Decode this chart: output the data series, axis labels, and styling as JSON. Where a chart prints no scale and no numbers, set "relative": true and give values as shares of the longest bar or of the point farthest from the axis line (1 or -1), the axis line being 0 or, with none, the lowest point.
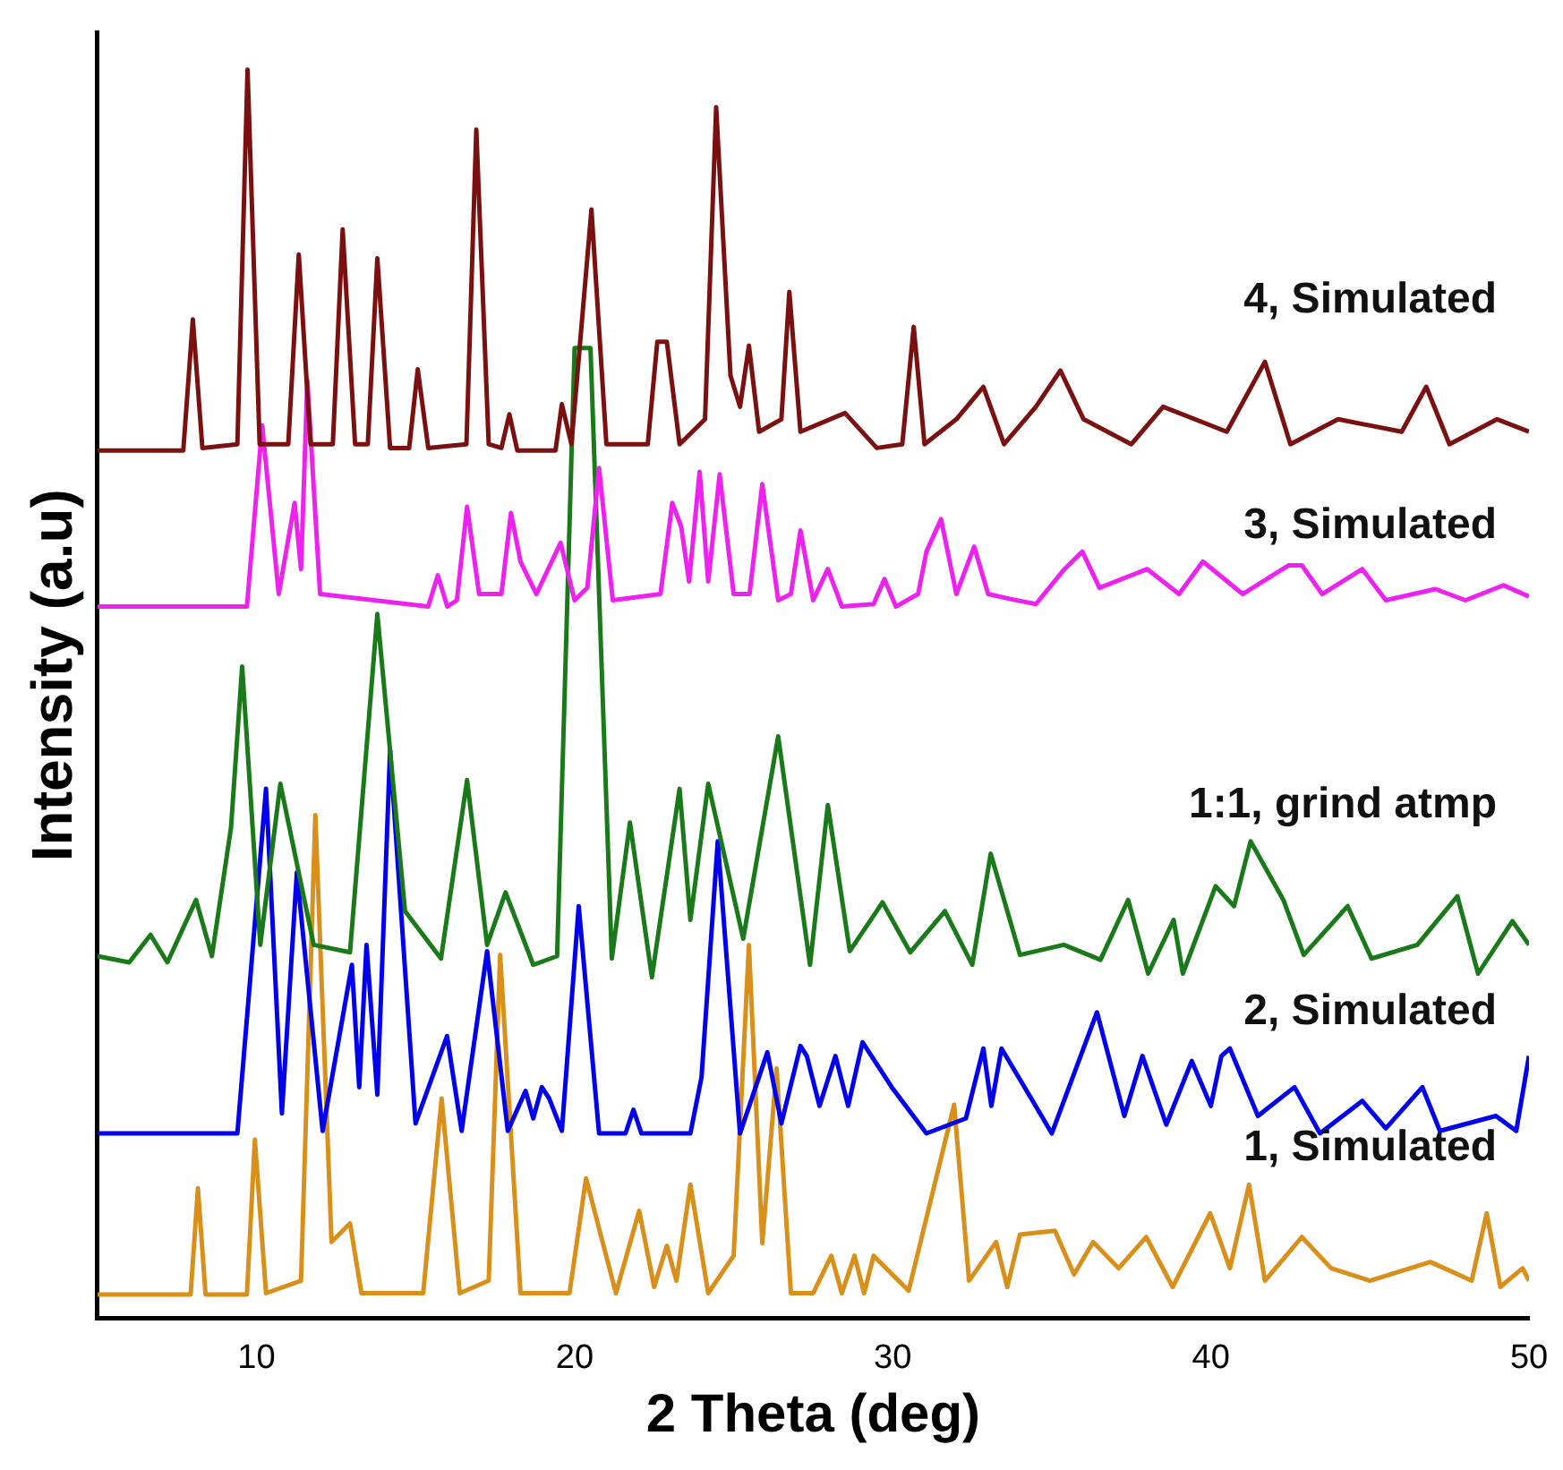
{
  "chart_data": {
    "type": "line",
    "xlabel": "2 Theta (deg)",
    "ylabel": "Intensity (a.u)",
    "xlim": [
      5,
      50
    ],
    "xticks": [
      10,
      20,
      30,
      40,
      50
    ],
    "relative": true,
    "tick_labels": "x",
    "grid": false,
    "legend": false,
    "marker": "none",
    "line_style": "solid",
    "series": [
      {
        "name": "4, Simulated",
        "color": "#7b1010",
        "x": [
          5,
          7.7,
          8.0,
          8.3,
          9.4,
          9.72,
          10.1,
          11.0,
          11.33,
          11.7,
          12.4,
          12.71,
          13.1,
          13.5,
          13.8,
          14.2,
          14.8,
          15.07,
          15.4,
          16.6,
          16.91,
          17.3,
          17.7,
          17.95,
          18.2,
          19.4,
          19.6,
          19.9,
          20.53,
          21.0,
          22.3,
          22.6,
          22.9,
          23.3,
          24.1,
          24.45,
          24.9,
          25.2,
          25.48,
          25.8,
          26.5,
          26.75,
          27.1,
          28.5,
          29.5,
          30.3,
          30.66,
          31.0,
          32.0,
          32.85,
          33.5,
          34.5,
          35.27,
          36.0,
          37.5,
          38.5,
          40.5,
          41.7,
          42.5,
          44.0,
          46.0,
          46.77,
          47.5,
          49.0,
          50
        ],
        "values": [
          0.695,
          0.695,
          0.8,
          0.697,
          0.7,
          1.0,
          0.7,
          0.7,
          0.852,
          0.7,
          0.7,
          0.872,
          0.7,
          0.7,
          0.849,
          0.697,
          0.697,
          0.76,
          0.697,
          0.7,
          0.952,
          0.7,
          0.697,
          0.724,
          0.695,
          0.695,
          0.732,
          0.7,
          0.888,
          0.7,
          0.7,
          0.782,
          0.782,
          0.7,
          0.72,
          0.97,
          0.755,
          0.73,
          0.779,
          0.71,
          0.72,
          0.822,
          0.71,
          0.725,
          0.697,
          0.7,
          0.794,
          0.7,
          0.72,
          0.746,
          0.7,
          0.73,
          0.759,
          0.72,
          0.7,
          0.73,
          0.71,
          0.766,
          0.7,
          0.72,
          0.71,
          0.746,
          0.7,
          0.72,
          0.71
        ]
      },
      {
        "name": "3, Simulated",
        "color": "#ee22ee",
        "x": [
          5,
          9.7,
          10.18,
          10.7,
          11.2,
          11.4,
          11.6,
          12.0,
          15.4,
          15.7,
          16.0,
          16.3,
          16.62,
          17.0,
          17.7,
          18.0,
          18.3,
          18.8,
          19.56,
          20.0,
          20.4,
          20.77,
          21.2,
          22.7,
          23.07,
          23.35,
          23.6,
          23.93,
          24.2,
          24.56,
          25.0,
          25.5,
          25.9,
          26.4,
          26.8,
          27.1,
          27.5,
          27.96,
          28.4,
          29.4,
          29.74,
          30.1,
          30.8,
          31.06,
          31.52,
          32.0,
          32.56,
          33.0,
          33.7,
          34.5,
          35.4,
          35.96,
          36.5,
          38.0,
          39.0,
          39.75,
          41.0,
          42.45,
          42.86,
          43.5,
          44.76,
          45.5,
          47.06,
          48.0,
          49.2,
          50
        ],
        "values": [
          0.57,
          0.57,
          0.715,
          0.58,
          0.653,
          0.6,
          0.751,
          0.58,
          0.57,
          0.595,
          0.57,
          0.575,
          0.65,
          0.58,
          0.58,
          0.645,
          0.606,
          0.58,
          0.621,
          0.575,
          0.585,
          0.681,
          0.575,
          0.58,
          0.653,
          0.634,
          0.59,
          0.678,
          0.59,
          0.676,
          0.58,
          0.58,
          0.668,
          0.575,
          0.58,
          0.631,
          0.575,
          0.6,
          0.57,
          0.572,
          0.592,
          0.57,
          0.58,
          0.614,
          0.64,
          0.58,
          0.618,
          0.58,
          0.576,
          0.572,
          0.6,
          0.614,
          0.585,
          0.6,
          0.58,
          0.606,
          0.58,
          0.603,
          0.603,
          0.58,
          0.6,
          0.575,
          0.584,
          0.575,
          0.587,
          0.578
        ]
      },
      {
        "name": "1:1, grind atmp",
        "color": "#1a7a1a",
        "x": [
          5,
          6.0,
          6.67,
          7.2,
          8.1,
          8.6,
          9.2,
          9.55,
          10.12,
          10.75,
          11.8,
          12.94,
          13.8,
          14.67,
          15.8,
          16.62,
          17.25,
          17.83,
          18.7,
          19.45,
          20.0,
          20.5,
          21.17,
          21.74,
          22.43,
          23.3,
          23.64,
          24.2,
          25.3,
          26.4,
          27.4,
          27.96,
          28.65,
          29.68,
          30.55,
          31.64,
          32.5,
          33.08,
          34.0,
          35.38,
          36.53,
          37.4,
          38.03,
          38.83,
          39.12,
          40.15,
          40.73,
          41.25,
          42.28,
          42.92,
          44.3,
          45.05,
          46.49,
          47.75,
          48.4,
          49.48,
          50
        ],
        "values": [
          0.29,
          0.285,
          0.307,
          0.285,
          0.335,
          0.29,
          0.393,
          0.522,
          0.299,
          0.428,
          0.299,
          0.293,
          0.564,
          0.326,
          0.288,
          0.431,
          0.299,
          0.341,
          0.283,
          0.29,
          0.777,
          0.777,
          0.288,
          0.397,
          0.273,
          0.424,
          0.319,
          0.428,
          0.304,
          0.466,
          0.283,
          0.411,
          0.294,
          0.333,
          0.293,
          0.326,
          0.283,
          0.372,
          0.291,
          0.299,
          0.287,
          0.335,
          0.276,
          0.319,
          0.276,
          0.346,
          0.33,
          0.382,
          0.335,
          0.291,
          0.33,
          0.288,
          0.299,
          0.338,
          0.276,
          0.318,
          0.299
        ]
      },
      {
        "name": "2, Simulated",
        "color": "#0000ee",
        "x": [
          5,
          9.4,
          10.3,
          10.8,
          11.27,
          12.08,
          13.0,
          13.23,
          13.46,
          13.8,
          14.2,
          15.0,
          15.99,
          16.45,
          17.25,
          17.9,
          18.46,
          18.7,
          18.97,
          19.2,
          19.6,
          20.13,
          20.77,
          21.6,
          21.85,
          22.1,
          23.64,
          23.99,
          24.5,
          25.2,
          26.06,
          26.5,
          27.1,
          27.3,
          27.7,
          28.2,
          28.6,
          29.05,
          29.97,
          31.06,
          32.3,
          32.85,
          33.1,
          33.42,
          34.4,
          35.0,
          36.42,
          37.28,
          37.85,
          38.6,
          39.4,
          40.0,
          40.33,
          40.6,
          41.48,
          42.63,
          43.43,
          44.76,
          45.5,
          46.65,
          47.2,
          48.96,
          49.6,
          50
        ],
        "values": [
          0.148,
          0.148,
          0.424,
          0.164,
          0.357,
          0.15,
          0.283,
          0.185,
          0.299,
          0.179,
          0.455,
          0.156,
          0.226,
          0.15,
          0.294,
          0.15,
          0.182,
          0.16,
          0.185,
          0.176,
          0.15,
          0.33,
          0.148,
          0.148,
          0.167,
          0.148,
          0.148,
          0.193,
          0.382,
          0.148,
          0.213,
          0.156,
          0.218,
          0.21,
          0.17,
          0.21,
          0.17,
          0.221,
          0.185,
          0.148,
          0.16,
          0.216,
          0.17,
          0.216,
          0.174,
          0.148,
          0.245,
          0.162,
          0.21,
          0.155,
          0.206,
          0.17,
          0.21,
          0.216,
          0.162,
          0.185,
          0.148,
          0.174,
          0.152,
          0.185,
          0.15,
          0.162,
          0.15,
          0.21
        ]
      },
      {
        "name": "1, Simulated",
        "color": "#d8901a",
        "x": [
          5,
          7.93,
          8.16,
          8.4,
          9.7,
          9.95,
          10.3,
          11.4,
          11.85,
          12.36,
          12.94,
          13.3,
          15.24,
          15.82,
          16.39,
          17.3,
          17.66,
          18.3,
          19.84,
          20.36,
          20.88,
          21.3,
          22.03,
          22.5,
          22.9,
          23.2,
          23.64,
          24.2,
          25.0,
          25.48,
          25.9,
          26.35,
          26.8,
          27.5,
          28.07,
          28.4,
          28.8,
          29.1,
          29.4,
          30.5,
          31.93,
          32.4,
          33.25,
          33.6,
          34.0,
          35.1,
          35.7,
          36.3,
          37.1,
          37.97,
          38.8,
          39.98,
          40.6,
          41.2,
          41.7,
          42.86,
          43.78,
          45.0,
          46.9,
          48.2,
          48.67,
          49.1,
          49.8,
          50
        ],
        "values": [
          0.019,
          0.019,
          0.104,
          0.019,
          0.019,
          0.143,
          0.02,
          0.03,
          0.403,
          0.061,
          0.076,
          0.02,
          0.02,
          0.176,
          0.02,
          0.03,
          0.291,
          0.02,
          0.02,
          0.112,
          0.061,
          0.02,
          0.086,
          0.025,
          0.058,
          0.03,
          0.107,
          0.02,
          0.05,
          0.299,
          0.06,
          0.2,
          0.02,
          0.02,
          0.05,
          0.02,
          0.05,
          0.02,
          0.05,
          0.022,
          0.171,
          0.03,
          0.061,
          0.025,
          0.067,
          0.07,
          0.035,
          0.061,
          0.04,
          0.065,
          0.025,
          0.084,
          0.04,
          0.107,
          0.03,
          0.065,
          0.04,
          0.03,
          0.045,
          0.03,
          0.084,
          0.025,
          0.04,
          0.03
        ]
      }
    ]
  }
}
